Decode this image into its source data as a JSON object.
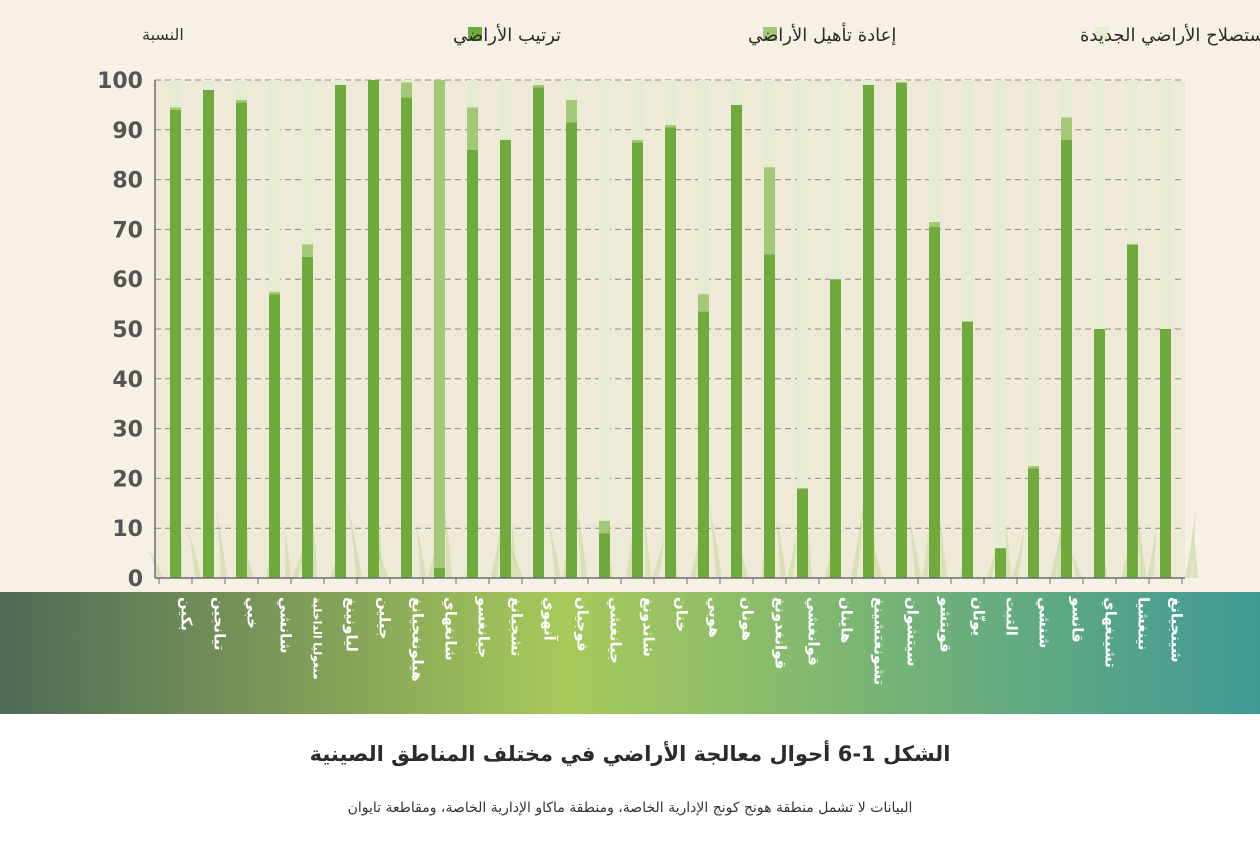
{
  "colors": {
    "panel_bg": "#f6f1e4",
    "plot_bg": "#efe9d8",
    "axis": "#6e6e6e",
    "grid": "#8c8c8c",
    "land_arrangement": "#6eaa3c",
    "land_rehabilitation": "#a3c978",
    "new_land_reclamation": "#e6ecd2",
    "band_left": "#4f6a56",
    "band_mid": "#a7c95a",
    "band_right": "#3f9a96",
    "grass": "#c6d79a"
  },
  "chart_data": {
    "type": "bar",
    "stacked": true,
    "ylabel": "النسبة",
    "ylim": [
      0,
      100
    ],
    "yticks": [
      0,
      10,
      20,
      30,
      40,
      50,
      60,
      70,
      80,
      90,
      100
    ],
    "grid": true,
    "legend_position": "top",
    "categories": [
      "بكين",
      "تيانجين",
      "خبي",
      "شانشي",
      "منغوليا الداخلية",
      "لياونينغ",
      "جيلين",
      "هيلونغجيانغ",
      "شانغهاي",
      "جيانغسو",
      "تشجيانغ",
      "آنهوي",
      "فوجيان",
      "جيانغشي",
      "شاندونغ",
      "خنان",
      "هوبي",
      "هونان",
      "قوانغدونغ",
      "قوانغشي",
      "هاينان",
      "تشونغتشينغ",
      "سيتشوان",
      "قويتشو",
      "يونّان",
      "التبت",
      "شنشي",
      "قانسو",
      "تشينغهاي",
      "نينغشيا",
      "شينجيانغ"
    ],
    "series": [
      {
        "name": "ترتيب الأراضي",
        "color_key": "land_arrangement",
        "values": [
          94,
          98,
          95.5,
          57,
          64.5,
          99,
          100,
          96.5,
          2,
          86,
          88,
          98.5,
          91.5,
          9,
          87.5,
          90.5,
          53.5,
          95,
          65,
          18,
          60,
          99,
          99.5,
          70.5,
          51.5,
          6,
          22,
          88,
          50,
          67,
          50
        ]
      },
      {
        "name": "إعادة تأهيل الأراضي",
        "color_key": "land_rehabilitation",
        "values": [
          0.5,
          0,
          0.5,
          0.5,
          2.5,
          0,
          0,
          3,
          98,
          8.5,
          0,
          0.5,
          4.5,
          2.5,
          0.5,
          0.5,
          3.5,
          0,
          17.5,
          0,
          0,
          0,
          0,
          1,
          0,
          0,
          0.5,
          4.5,
          0,
          0,
          0
        ]
      },
      {
        "name": "استصلاح الأراضي الجديدة",
        "color_key": "new_land_reclamation",
        "values": [
          5.5,
          2,
          4,
          42.5,
          33,
          1,
          0,
          0.5,
          0,
          5.5,
          12,
          1,
          4,
          88.5,
          12,
          9,
          43,
          5,
          17.5,
          82,
          40,
          1,
          0.5,
          28.5,
          48.5,
          94,
          77.5,
          7.5,
          50,
          33,
          50
        ]
      }
    ]
  },
  "caption": {
    "title": "الشكل 1-6 أحوال معالجة الأراضي في مختلف المناطق الصينية",
    "note": "البيانات لا تشمل منطقة هونج كونج الإدارية الخاصة، ومنطقة ماكاو الإدارية الخاصة، ومقاطعة تايوان"
  }
}
